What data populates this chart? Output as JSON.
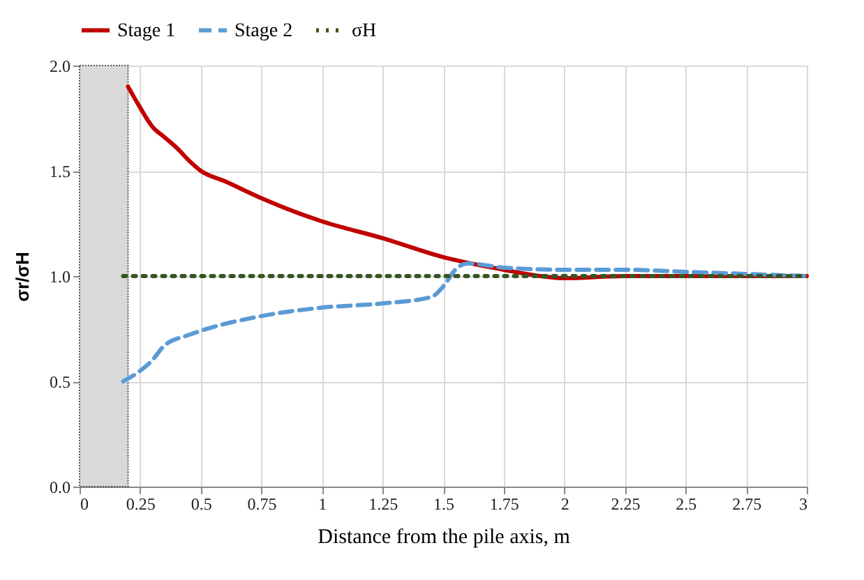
{
  "chart_data": {
    "type": "line",
    "xlabel": "Distance from the pile axis, m",
    "ylabel": "σr/σH",
    "xlim": [
      0,
      3
    ],
    "xticks": [
      0,
      0.25,
      0.5,
      0.75,
      1,
      1.25,
      1.5,
      1.75,
      2,
      2.25,
      2.5,
      2.75,
      3
    ],
    "ylim": [
      0,
      2
    ],
    "yticks": [
      {
        "value": 0,
        "label": "0.0"
      },
      {
        "value": 0.5,
        "label": "0.5"
      },
      {
        "value": 1,
        "label": "1.0"
      },
      {
        "value": 1.5,
        "label": "1.5"
      },
      {
        "value": 2,
        "label": "2.0"
      }
    ],
    "grid": true,
    "legend": "top",
    "bands": [
      {
        "axis": "x",
        "from": 0,
        "to": 0.2,
        "color": "#d9d9d9"
      }
    ],
    "series": [
      {
        "name": "Stage 1",
        "color": "#c00000",
        "line_style": "solid",
        "x": [
          0.2,
          0.25,
          0.3,
          0.35,
          0.4,
          0.45,
          0.5,
          0.6,
          0.75,
          0.9,
          1,
          1.25,
          1.5,
          1.75,
          1.9,
          2,
          2.25,
          2.5,
          3
        ],
        "values": [
          1.9,
          1.8,
          1.71,
          1.66,
          1.61,
          1.55,
          1.5,
          1.45,
          1.37,
          1.3,
          1.26,
          1.18,
          1.09,
          1.03,
          1.0,
          0.99,
          1.0,
          1.0,
          1.0
        ]
      },
      {
        "name": "Stage 2",
        "color": "#5b9bd5",
        "line_style": "dashed",
        "x": [
          0.18,
          0.25,
          0.3,
          0.35,
          0.45,
          0.5,
          0.75,
          1,
          1.25,
          1.45,
          1.5,
          1.55,
          1.6,
          1.75,
          2,
          2.25,
          2.5,
          2.75,
          3
        ],
        "values": [
          0.5,
          0.55,
          0.6,
          0.67,
          0.72,
          0.74,
          0.81,
          0.85,
          0.87,
          0.9,
          0.95,
          1.03,
          1.06,
          1.04,
          1.03,
          1.03,
          1.02,
          1.01,
          1.0
        ]
      },
      {
        "name": "σH",
        "color": "#375623",
        "line_style": "dotted",
        "x": [
          0.18,
          3
        ],
        "values": [
          1,
          1
        ]
      }
    ]
  }
}
